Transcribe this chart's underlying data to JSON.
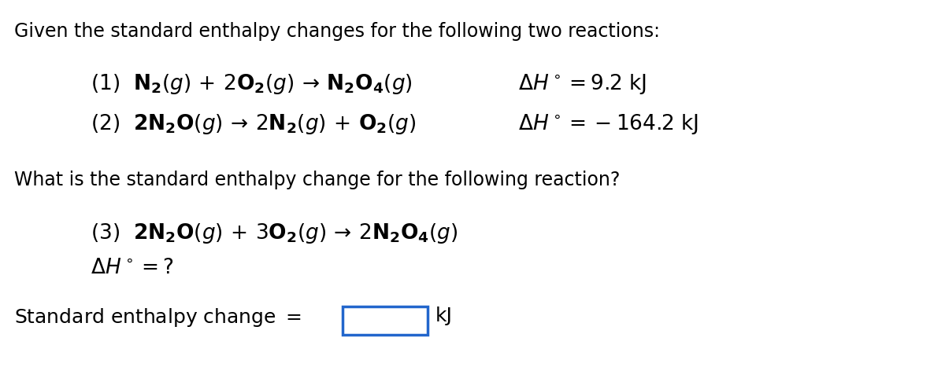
{
  "bg_color": "#ffffff",
  "text_color": "#000000",
  "box_color": "#2266cc",
  "title": "Given the standard enthalpy changes for the following two reactions:",
  "reaction1": "(1)  $\\mathbf{N_2}\\mathit{(g)}\\, +\\, 2\\mathbf{O_2}\\mathit{(g)}\\, \\rightarrow\\, \\mathbf{N_2O_4}\\mathit{(g)}$",
  "reaction1_dH": "$\\Delta H^\\circ = 9.2\\ \\mathrm{kJ}$",
  "reaction2": "(2)  $\\mathbf{2N_2O}\\mathit{(g)}\\, \\rightarrow\\, 2\\mathbf{N_2}\\mathit{(g)}\\, +\\, \\mathbf{O_2}\\mathit{(g)}$",
  "reaction2_dH": "$\\Delta H^\\circ = -164.2\\ \\mathrm{kJ}$",
  "question": "What is the standard enthalpy change for the following reaction?",
  "reaction3": "(3)  $\\mathbf{2N_2O}\\mathit{(g)}\\, +\\, 3\\mathbf{O_2}\\mathit{(g)}\\, \\rightarrow\\, 2\\mathbf{N_2O_4}\\mathit{(g)}$",
  "reaction3_dH": "$\\Delta H^\\circ =?$",
  "answer_label": "Standard enthalpy change $=$",
  "answer_unit": "kJ",
  "font_size_title": 17,
  "font_size_reaction": 19,
  "font_size_question": 17,
  "font_size_answer": 18
}
